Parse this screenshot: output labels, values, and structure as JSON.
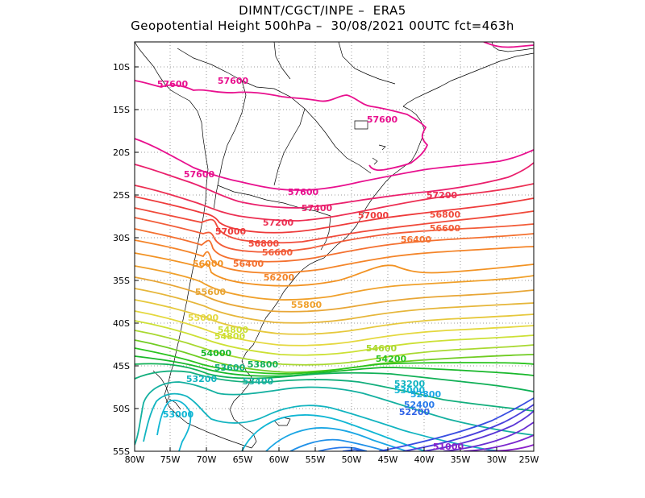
{
  "header": {
    "line1": "DIMNT/CGCT/INPE –  ERA5",
    "line2": "Geopotential Height 500hPa –  30/08/2021 00UTC fct=463h"
  },
  "axes": {
    "lat_labels": [
      "10S",
      "15S",
      "20S",
      "25S",
      "30S",
      "35S",
      "40S",
      "45S",
      "50S",
      "55S"
    ],
    "lon_labels": [
      "80W",
      "75W",
      "70W",
      "65W",
      "60W",
      "55W",
      "50W",
      "45W",
      "40W",
      "35W",
      "30W",
      "25W"
    ]
  },
  "colors": {
    "c57600": "#e8108e",
    "c57400": "#ea1f6c",
    "c57200": "#ec2f52",
    "c57000": "#ee3a3a",
    "c56800": "#f04a3a",
    "c56600": "#f25c38",
    "c56400": "#f4702f",
    "c56200": "#f48428",
    "c56000": "#f29222",
    "c55800": "#f0a02a",
    "c55600": "#e8a636",
    "c55400": "#e6b63a",
    "c55200": "#e6c83c",
    "c55000": "#e4d83e",
    "c54800": "#cce034",
    "c54600": "#a8d830",
    "c54400": "#70cc22",
    "c54200": "#2ac41e",
    "c54000": "#18b82a",
    "c53800": "#10b056",
    "c53600": "#12ae7c",
    "c53400": "#14b0a0",
    "c53200": "#12b4c0",
    "c53000": "#10b6d4",
    "c52800": "#1aa6e4",
    "c52600": "#2090e8",
    "c52400": "#2878ea",
    "c52200": "#2f62e6",
    "c52000": "#3a4ee2",
    "c51800": "#4a40dc",
    "c51600": "#5a36d6",
    "c51400": "#6a2ed2",
    "c51200": "#7a26ce",
    "c51000": "#8a20ca"
  },
  "contour_labels": [
    {
      "text": "57600",
      "color": "c57600"
    },
    {
      "text": "57600",
      "color": "c57600"
    },
    {
      "text": "57600",
      "color": "c57600"
    },
    {
      "text": "57600",
      "color": "c57600"
    },
    {
      "text": "57600",
      "color": "c57600"
    },
    {
      "text": "57400",
      "color": "c57400"
    },
    {
      "text": "57200",
      "color": "c57200"
    },
    {
      "text": "57200",
      "color": "c57200"
    },
    {
      "text": "57000",
      "color": "c57000"
    },
    {
      "text": "57000",
      "color": "c57000"
    },
    {
      "text": "56800",
      "color": "c56800"
    },
    {
      "text": "56800",
      "color": "c56800"
    },
    {
      "text": "56600",
      "color": "c56600"
    },
    {
      "text": "56600",
      "color": "c56600"
    },
    {
      "text": "56400",
      "color": "c56400"
    },
    {
      "text": "56400",
      "color": "c56400"
    },
    {
      "text": "56200",
      "color": "c56200"
    },
    {
      "text": "56000",
      "color": "c56000"
    },
    {
      "text": "55800",
      "color": "c55800"
    },
    {
      "text": "55600",
      "color": "c55600"
    },
    {
      "text": "55000",
      "color": "c55000"
    },
    {
      "text": "54800",
      "color": "c54800"
    },
    {
      "text": "54800",
      "color": "c54800"
    },
    {
      "text": "54600",
      "color": "c54600"
    },
    {
      "text": "54200",
      "color": "c54200"
    },
    {
      "text": "54000",
      "color": "c54000"
    },
    {
      "text": "53800",
      "color": "c53800"
    },
    {
      "text": "53600",
      "color": "c53600"
    },
    {
      "text": "53400",
      "color": "c53400"
    },
    {
      "text": "53200",
      "color": "c53200"
    },
    {
      "text": "53200",
      "color": "c53200"
    },
    {
      "text": "53000",
      "color": "c53000"
    },
    {
      "text": "53000",
      "color": "c53000"
    },
    {
      "text": "52800",
      "color": "c52800"
    },
    {
      "text": "52400",
      "color": "c52400"
    },
    {
      "text": "52200",
      "color": "c52200"
    },
    {
      "text": "51000",
      "color": "c51000"
    }
  ]
}
